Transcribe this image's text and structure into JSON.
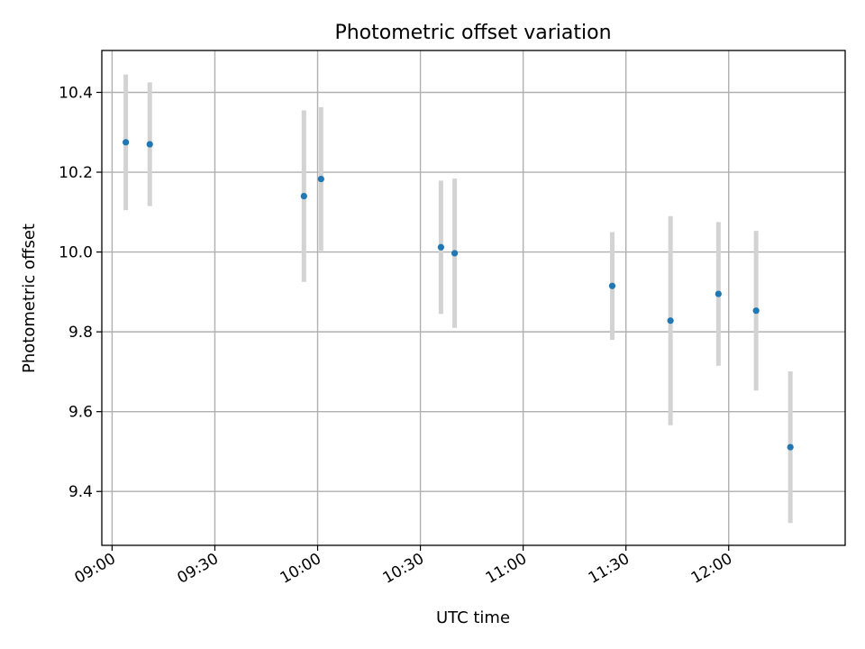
{
  "chart_data": {
    "type": "scatter",
    "title": "Photometric offset variation",
    "xlabel": "UTC time",
    "ylabel": "Photometric offset",
    "x_tick_labels": [
      "09:00",
      "09:30",
      "10:00",
      "10:30",
      "11:00",
      "11:30",
      "12:00"
    ],
    "y_tick_labels": [
      "9.4",
      "9.6",
      "9.8",
      "10.0",
      "10.2",
      "10.4"
    ],
    "y_ticks": [
      9.4,
      9.6,
      9.8,
      10.0,
      10.2,
      10.4
    ],
    "xlim": [
      "08:57",
      "12:34"
    ],
    "ylim": [
      9.265,
      10.505
    ],
    "grid": true,
    "errorbar_color": "#d3d3d3",
    "point_color": "#1f77b4",
    "points": [
      {
        "time": "09:04",
        "y": 10.275,
        "err": 0.17
      },
      {
        "time": "09:11",
        "y": 10.27,
        "err": 0.155
      },
      {
        "time": "09:56",
        "y": 10.14,
        "err": 0.215
      },
      {
        "time": "10:01",
        "y": 10.183,
        "err": 0.18
      },
      {
        "time": "10:36",
        "y": 10.012,
        "err": 0.167
      },
      {
        "time": "10:40",
        "y": 9.997,
        "err": 0.187
      },
      {
        "time": "11:26",
        "y": 9.915,
        "err": 0.135
      },
      {
        "time": "11:43",
        "y": 9.828,
        "err": 0.262
      },
      {
        "time": "11:57",
        "y": 9.895,
        "err": 0.18
      },
      {
        "time": "12:08",
        "y": 9.853,
        "err": 0.2
      },
      {
        "time": "12:18",
        "y": 9.511,
        "err": 0.19
      }
    ]
  }
}
